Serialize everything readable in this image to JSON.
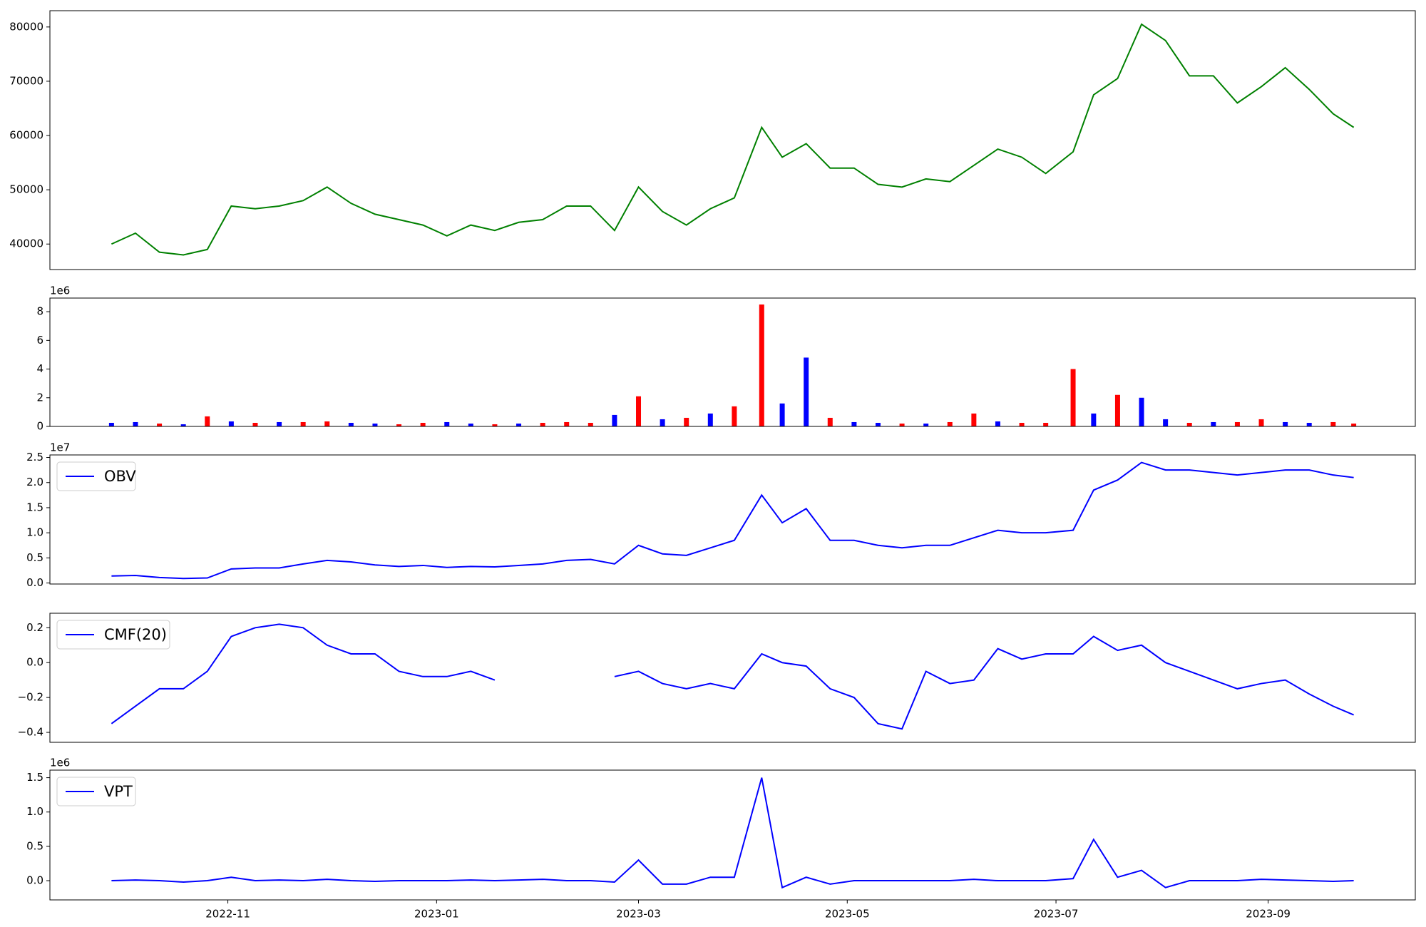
{
  "chart_data": {
    "type": "panels",
    "x": [
      "2022-09-28",
      "2022-10-05",
      "2022-10-12",
      "2022-10-19",
      "2022-10-26",
      "2022-11-02",
      "2022-11-09",
      "2022-11-16",
      "2022-11-23",
      "2022-11-30",
      "2022-12-07",
      "2022-12-14",
      "2022-12-21",
      "2022-12-28",
      "2023-01-04",
      "2023-01-11",
      "2023-01-18",
      "2023-01-25",
      "2023-02-01",
      "2023-02-08",
      "2023-02-15",
      "2023-02-22",
      "2023-03-01",
      "2023-03-08",
      "2023-03-15",
      "2023-03-22",
      "2023-03-29",
      "2023-04-06",
      "2023-04-12",
      "2023-04-19",
      "2023-04-26",
      "2023-05-03",
      "2023-05-10",
      "2023-05-17",
      "2023-05-24",
      "2023-05-31",
      "2023-06-07",
      "2023-06-14",
      "2023-06-21",
      "2023-06-28",
      "2023-07-06",
      "2023-07-12",
      "2023-07-19",
      "2023-07-26",
      "2023-08-02",
      "2023-08-09",
      "2023-08-16",
      "2023-08-23",
      "2023-08-30",
      "2023-09-06",
      "2023-09-13",
      "2023-09-20",
      "2023-09-26"
    ],
    "xlim": [
      "2022-09-10",
      "2023-10-14"
    ],
    "xticks": [
      {
        "value": "2022-11-01",
        "label": "2022-11"
      },
      {
        "value": "2023-01-01",
        "label": "2023-01"
      },
      {
        "value": "2023-03-01",
        "label": "2023-03"
      },
      {
        "value": "2023-05-01",
        "label": "2023-05"
      },
      {
        "value": "2023-07-01",
        "label": "2023-07"
      },
      {
        "value": "2023-09-01",
        "label": "2023-09"
      }
    ],
    "panels": [
      {
        "type": "line",
        "ylim": [
          35300,
          83000
        ],
        "yticks": [
          40000,
          50000,
          60000,
          70000,
          80000
        ],
        "series": [
          {
            "color": "#008000",
            "values": [
              40000,
              42000,
              38500,
              38000,
              39000,
              47000,
              46500,
              47000,
              48000,
              50500,
              47500,
              45500,
              44500,
              43500,
              41500,
              43500,
              42500,
              44000,
              44500,
              47000,
              47000,
              42500,
              50500,
              46000,
              43500,
              46500,
              48500,
              61500,
              56000,
              58500,
              54000,
              54000,
              51000,
              50500,
              52000,
              51500,
              54500,
              57500,
              56000,
              53000,
              57000,
              67500,
              70500,
              80500,
              77500,
              71000,
              71000,
              66000,
              69000,
              72500,
              68500,
              64000,
              61500
            ]
          }
        ]
      },
      {
        "type": "bar",
        "ylim": [
          0,
          8950000
        ],
        "offset_label": "1e6",
        "yticks": [
          0,
          {
            "value": 2000000,
            "label": "2"
          },
          {
            "value": 4000000,
            "label": "4"
          },
          {
            "value": 6000000,
            "label": "6"
          },
          {
            "value": 8000000,
            "label": "8"
          }
        ],
        "series": [
          {
            "values": [
              250000,
              300000,
              200000,
              150000,
              700000,
              350000,
              250000,
              300000,
              300000,
              350000,
              250000,
              200000,
              150000,
              250000,
              300000,
              200000,
              150000,
              200000,
              250000,
              300000,
              250000,
              800000,
              2100000,
              500000,
              600000,
              900000,
              1400000,
              8500000,
              1600000,
              4800000,
              600000,
              300000,
              250000,
              200000,
              200000,
              300000,
              900000,
              350000,
              250000,
              250000,
              4000000,
              900000,
              2200000,
              2000000,
              500000,
              250000,
              300000,
              300000,
              500000,
              300000,
              250000,
              300000,
              200000
            ],
            "colors": [
              "#0000ff",
              "#0000ff",
              "#ff0000",
              "#0000ff",
              "#ff0000",
              "#0000ff",
              "#ff0000",
              "#0000ff",
              "#ff0000",
              "#ff0000",
              "#0000ff",
              "#0000ff",
              "#ff0000",
              "#ff0000",
              "#0000ff",
              "#0000ff",
              "#ff0000",
              "#0000ff",
              "#ff0000",
              "#ff0000",
              "#ff0000",
              "#0000ff",
              "#ff0000",
              "#0000ff",
              "#ff0000",
              "#0000ff",
              "#ff0000",
              "#ff0000",
              "#0000ff",
              "#0000ff",
              "#ff0000",
              "#0000ff",
              "#0000ff",
              "#ff0000",
              "#0000ff",
              "#ff0000",
              "#ff0000",
              "#0000ff",
              "#ff0000",
              "#ff0000",
              "#ff0000",
              "#0000ff",
              "#ff0000",
              "#0000ff",
              "#0000ff",
              "#ff0000",
              "#0000ff",
              "#ff0000",
              "#ff0000",
              "#0000ff",
              "#0000ff",
              "#ff0000",
              "#ff0000"
            ]
          }
        ]
      },
      {
        "type": "line",
        "ylim": [
          -200000,
          25500000
        ],
        "offset_label": "1e7",
        "legend": "upper left",
        "yticks": [
          {
            "value": 0,
            "label": "0.0"
          },
          {
            "value": 5000000,
            "label": "0.5"
          },
          {
            "value": 10000000,
            "label": "1.0"
          },
          {
            "value": 15000000,
            "label": "1.5"
          },
          {
            "value": 20000000,
            "label": "2.0"
          },
          {
            "value": 25000000,
            "label": "2.5"
          }
        ],
        "series": [
          {
            "name": "OBV",
            "color": "#0000ff",
            "values": [
              1400000,
              1500000,
              1100000,
              900000,
              1000000,
              2800000,
              3000000,
              3000000,
              3800000,
              4500000,
              4200000,
              3600000,
              3300000,
              3500000,
              3100000,
              3300000,
              3200000,
              3500000,
              3800000,
              4500000,
              4700000,
              3800000,
              7500000,
              5800000,
              5500000,
              7000000,
              8500000,
              17500000,
              12000000,
              14800000,
              8500000,
              8500000,
              7500000,
              7000000,
              7500000,
              7500000,
              9000000,
              10500000,
              10000000,
              10000000,
              10500000,
              18500000,
              20500000,
              24000000,
              22500000,
              22500000,
              22000000,
              21500000,
              22000000,
              22500000,
              22500000,
              21500000,
              21000000
            ]
          }
        ]
      },
      {
        "type": "line",
        "ylim": [
          -0.457,
          0.283
        ],
        "legend": "upper left",
        "yticks": [
          {
            "value": -0.4,
            "label": "−0.4"
          },
          {
            "value": -0.2,
            "label": "−0.2"
          },
          {
            "value": 0,
            "label": "0.0"
          },
          0.2
        ],
        "series": [
          {
            "name": "CMF(20)",
            "color": "#0000ff",
            "values": [
              -0.35,
              -0.25,
              -0.15,
              -0.15,
              -0.05,
              0.15,
              0.2,
              0.22,
              0.2,
              0.1,
              0.05,
              0.05,
              -0.05,
              -0.08,
              -0.08,
              -0.05,
              -0.1,
              null,
              null,
              null,
              null,
              -0.08,
              -0.05,
              -0.12,
              -0.15,
              -0.12,
              -0.15,
              0.05,
              0.0,
              -0.02,
              -0.15,
              -0.2,
              -0.35,
              -0.38,
              -0.05,
              -0.12,
              -0.1,
              0.08,
              0.02,
              0.05,
              0.05,
              0.15,
              0.07,
              0.1,
              0.0,
              -0.05,
              -0.1,
              -0.15,
              -0.12,
              -0.1,
              -0.18,
              -0.25,
              -0.3
            ]
          }
        ]
      },
      {
        "type": "line",
        "ylim": [
          -280000,
          1610000
        ],
        "offset_label": "1e6",
        "legend": "upper left",
        "yticks": [
          {
            "value": 0,
            "label": "0.0"
          },
          {
            "value": 500000,
            "label": "0.5"
          },
          {
            "value": 1000000,
            "label": "1.0"
          },
          {
            "value": 1500000,
            "label": "1.5"
          }
        ],
        "series": [
          {
            "name": "VPT",
            "color": "#0000ff",
            "values": [
              0,
              10000,
              0,
              -20000,
              0,
              50000,
              0,
              10000,
              0,
              20000,
              0,
              -10000,
              0,
              0,
              0,
              10000,
              0,
              10000,
              20000,
              0,
              0,
              -20000,
              300000,
              -50000,
              -50000,
              50000,
              50000,
              1500000,
              -100000,
              50000,
              -50000,
              0,
              0,
              0,
              0,
              0,
              20000,
              0,
              0,
              0,
              30000,
              600000,
              50000,
              150000,
              -100000,
              0,
              0,
              0,
              20000,
              10000,
              0,
              -10000,
              0
            ]
          }
        ]
      }
    ]
  }
}
